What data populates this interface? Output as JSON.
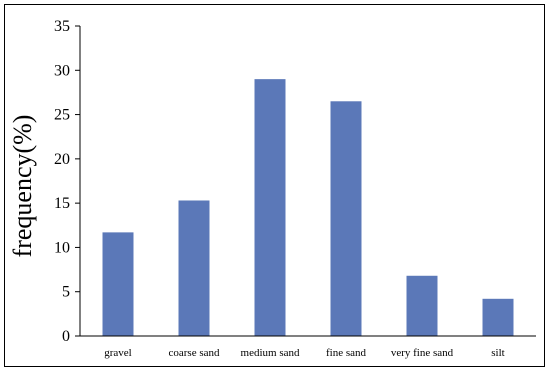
{
  "chart_data": {
    "type": "bar",
    "categories": [
      "gravel",
      "coarse sand",
      "medium sand",
      "fine sand",
      "very fine sand",
      "silt"
    ],
    "values": [
      11.7,
      15.3,
      29.0,
      26.5,
      6.8,
      4.2
    ],
    "ylabel": "frequency(%)",
    "xlabel": "",
    "ylim": [
      0,
      35
    ],
    "yticks": [
      0,
      5,
      10,
      15,
      20,
      25,
      30,
      35
    ],
    "grid": false,
    "legend": "none",
    "bar_color": "#5b78b8"
  }
}
